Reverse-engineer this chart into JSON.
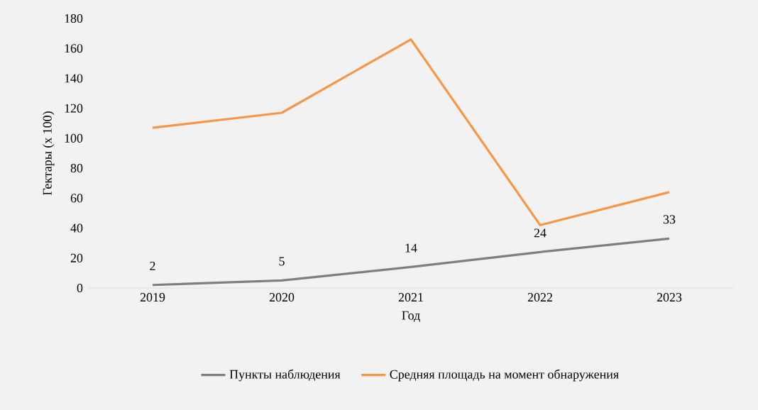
{
  "chart_data": {
    "type": "line",
    "xlabel": "Год",
    "ylabel": "Гектары (x 100)",
    "categories": [
      "2019",
      "2020",
      "2021",
      "2022",
      "2023"
    ],
    "ylim": [
      0,
      180
    ],
    "yticks": [
      0,
      20,
      40,
      60,
      80,
      100,
      120,
      140,
      160,
      180
    ],
    "legend": "bottom",
    "grid": false,
    "series": [
      {
        "name": "Пункты наблюдения",
        "color": "#7f7f7f",
        "values": [
          2,
          5,
          14,
          24,
          33
        ],
        "value_labels": [
          "2",
          "5",
          "14",
          "24",
          "33"
        ]
      },
      {
        "name": "Средняя площадь на момент  обнаружения",
        "color": "#f79646",
        "values": [
          107,
          117,
          166,
          42,
          64
        ]
      }
    ]
  }
}
